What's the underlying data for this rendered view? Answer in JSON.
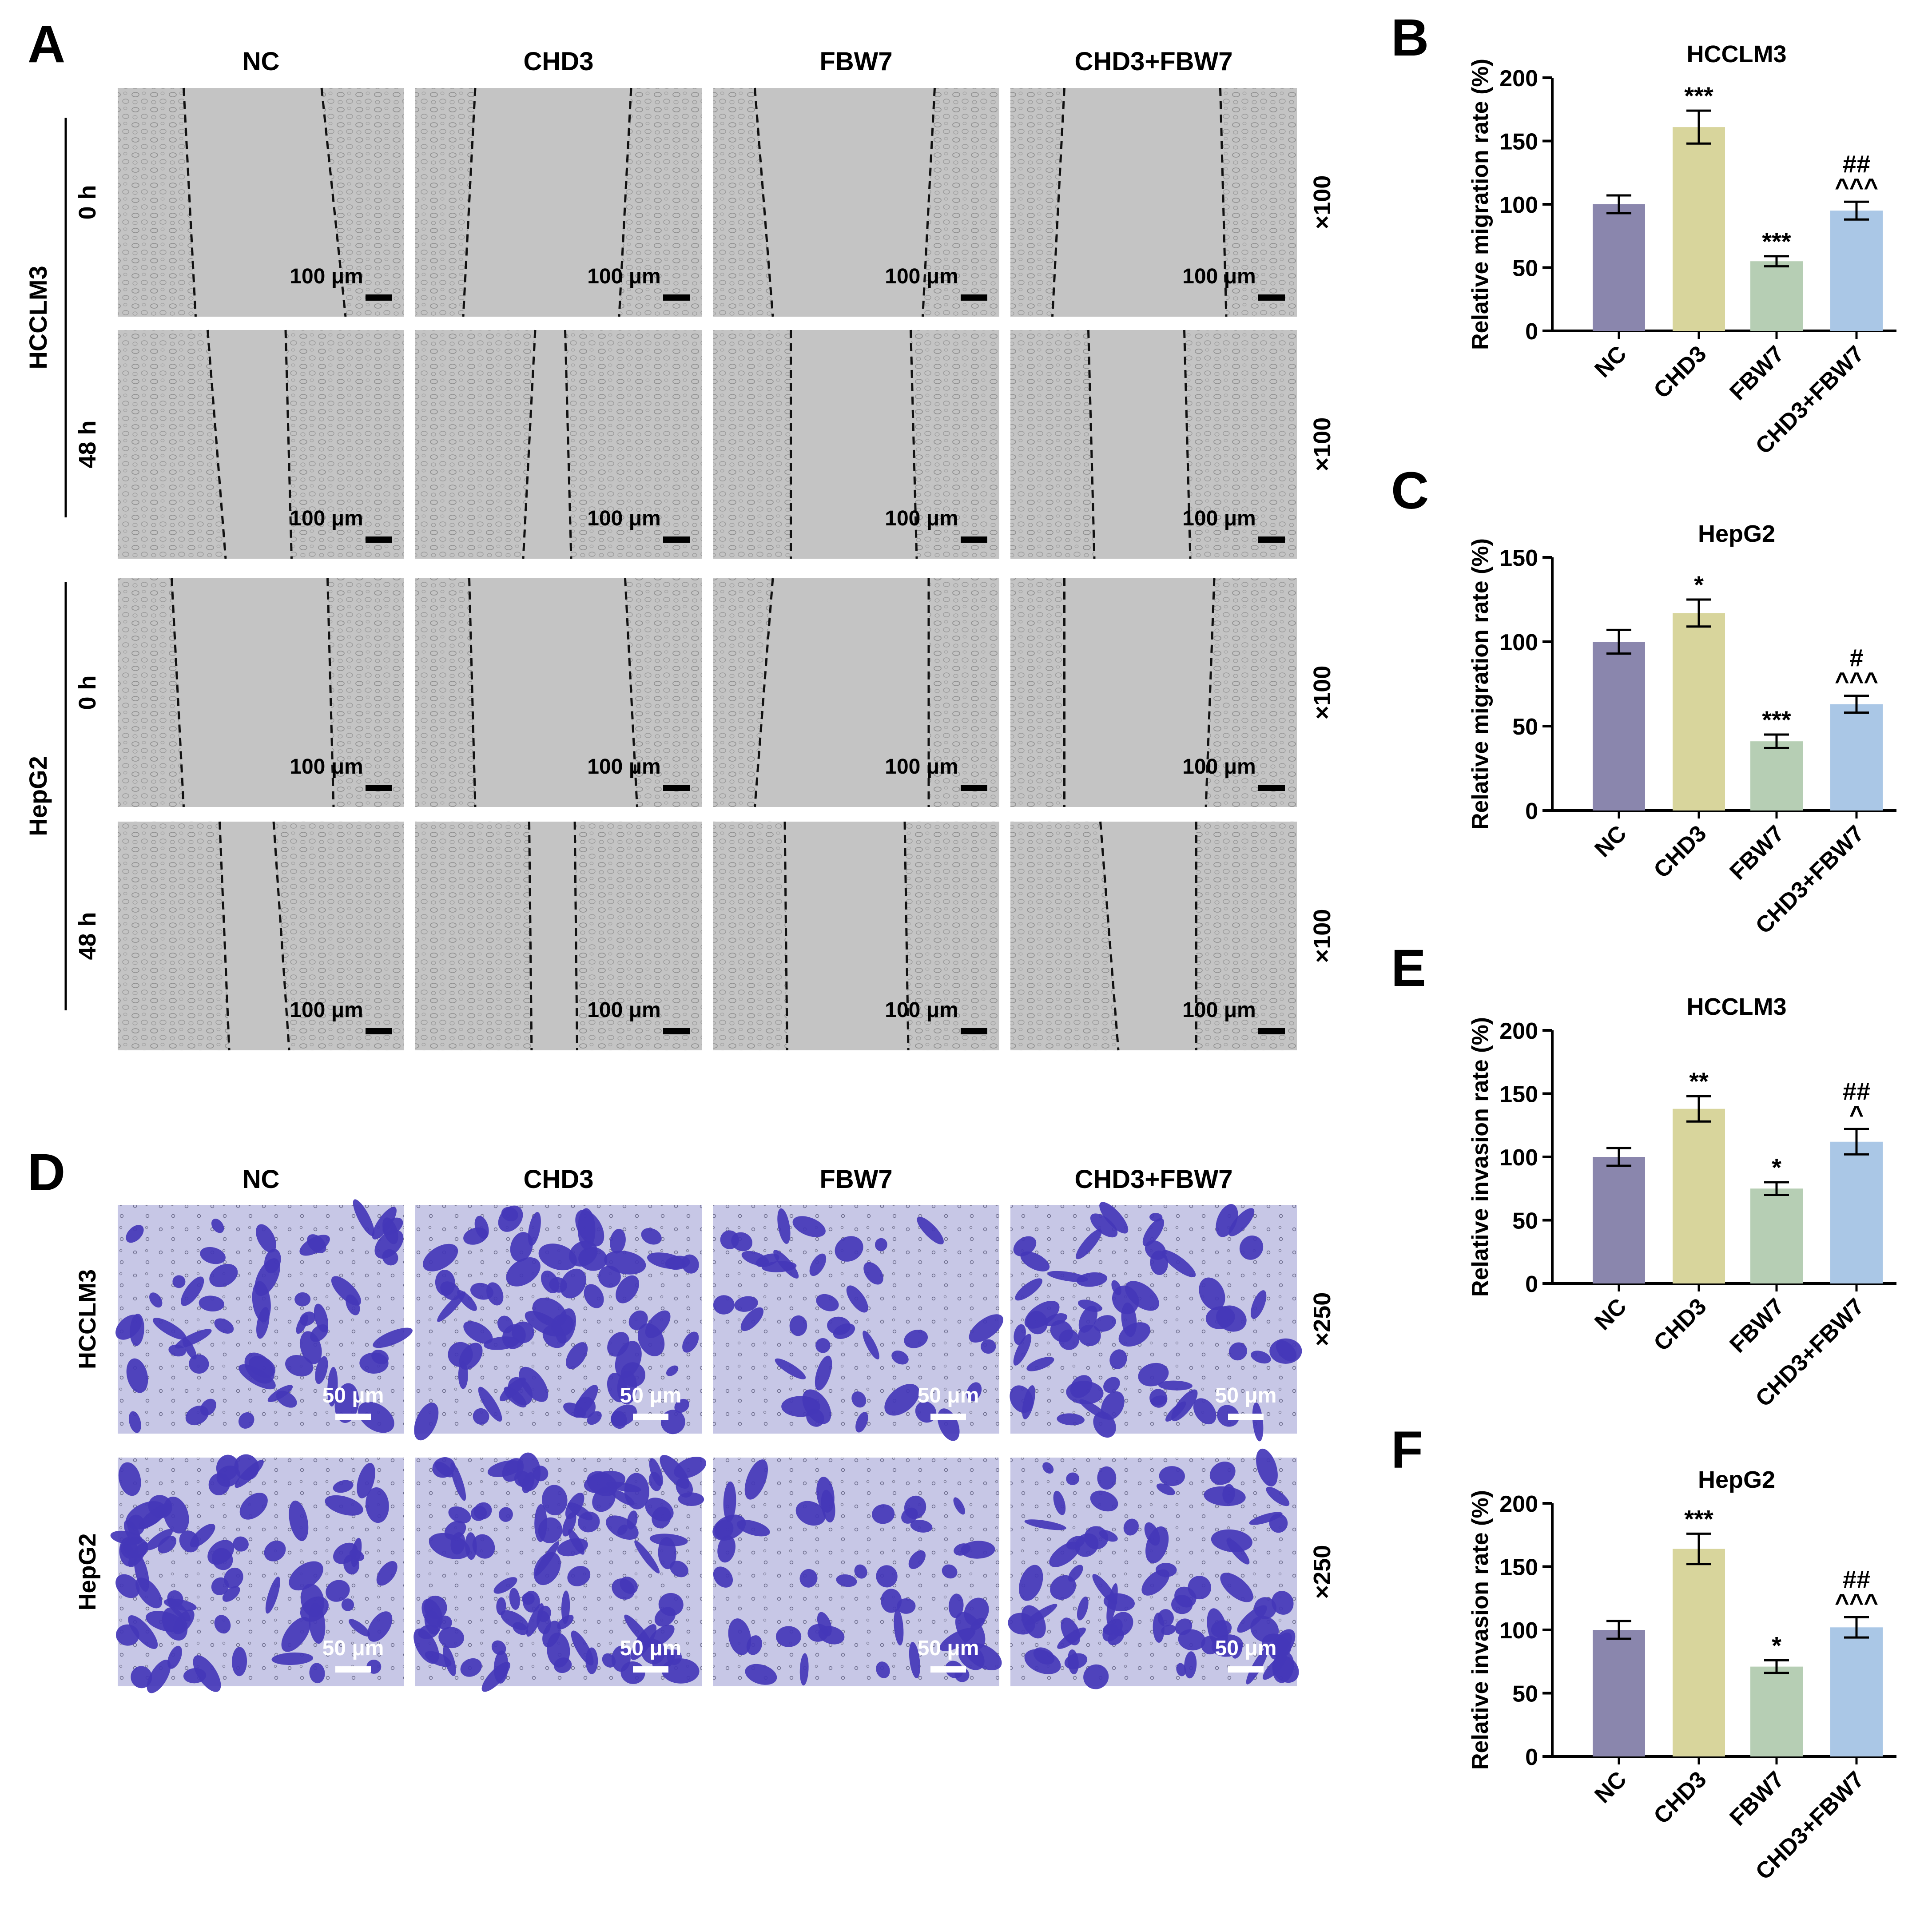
{
  "panel_letters": [
    "A",
    "B",
    "C",
    "D",
    "E",
    "F"
  ],
  "panelA": {
    "columns": [
      "NC",
      "CHD3",
      "FBW7",
      "CHD3+FBW7"
    ],
    "cell_lines": [
      "HCCLM3",
      "HepG2"
    ],
    "timepoints": [
      "0 h",
      "48 h"
    ],
    "scale_bar": "100 μm",
    "magnification": "×100"
  },
  "panelD": {
    "columns": [
      "NC",
      "CHD3",
      "FBW7",
      "CHD3+FBW7"
    ],
    "rows": [
      "HCCLM3",
      "HepG2"
    ],
    "scale_bar": "50 μm",
    "magnification": "×250"
  },
  "colors": {
    "NC": "#8a86ad",
    "CHD3": "#d8d59c",
    "FBW7": "#b6ceb4",
    "CHD3+FBW7": "#aac7e6",
    "wound_bg": "#c4c4c4",
    "stain_bg": "#c7c7e6",
    "stain_cell": "#4437b8"
  },
  "chart_data": [
    {
      "panel": "B",
      "type": "bar",
      "title": "HCCLM3",
      "ylabel": "Relative migration rate (%)",
      "categories": [
        "NC",
        "CHD3",
        "FBW7",
        "CHD3+FBW7"
      ],
      "values": [
        100,
        161,
        55,
        95
      ],
      "errors": [
        7,
        13,
        4,
        7
      ],
      "annotations": [
        [
          ""
        ],
        [
          "***"
        ],
        [
          "***"
        ],
        [
          "^^^",
          "##"
        ]
      ],
      "ylim": [
        0,
        200
      ],
      "yticks": [
        0,
        50,
        100,
        150,
        200
      ]
    },
    {
      "panel": "C",
      "type": "bar",
      "title": "HepG2",
      "ylabel": "Relative migration rate (%)",
      "categories": [
        "NC",
        "CHD3",
        "FBW7",
        "CHD3+FBW7"
      ],
      "values": [
        100,
        117,
        41,
        63
      ],
      "errors": [
        7,
        8,
        4,
        5
      ],
      "annotations": [
        [
          ""
        ],
        [
          "*"
        ],
        [
          "***"
        ],
        [
          "^^^",
          "#"
        ]
      ],
      "ylim": [
        0,
        150
      ],
      "yticks": [
        0,
        50,
        100,
        150
      ]
    },
    {
      "panel": "E",
      "type": "bar",
      "title": "HCCLM3",
      "ylabel": "Relative invasion rate (%)",
      "categories": [
        "NC",
        "CHD3",
        "FBW7",
        "CHD3+FBW7"
      ],
      "values": [
        100,
        138,
        75,
        112
      ],
      "errors": [
        7,
        10,
        5,
        10
      ],
      "annotations": [
        [
          ""
        ],
        [
          "**"
        ],
        [
          "*"
        ],
        [
          "^",
          "##"
        ]
      ],
      "ylim": [
        0,
        200
      ],
      "yticks": [
        0,
        50,
        100,
        150,
        200
      ]
    },
    {
      "panel": "F",
      "type": "bar",
      "title": "HepG2",
      "ylabel": "Relative invasion rate (%)",
      "categories": [
        "NC",
        "CHD3",
        "FBW7",
        "CHD3+FBW7"
      ],
      "values": [
        100,
        164,
        71,
        102
      ],
      "errors": [
        7,
        12,
        5,
        8
      ],
      "annotations": [
        [
          ""
        ],
        [
          "***"
        ],
        [
          "*"
        ],
        [
          "^^^",
          "##"
        ]
      ],
      "ylim": [
        0,
        200
      ],
      "yticks": [
        0,
        50,
        100,
        150,
        200
      ]
    }
  ]
}
